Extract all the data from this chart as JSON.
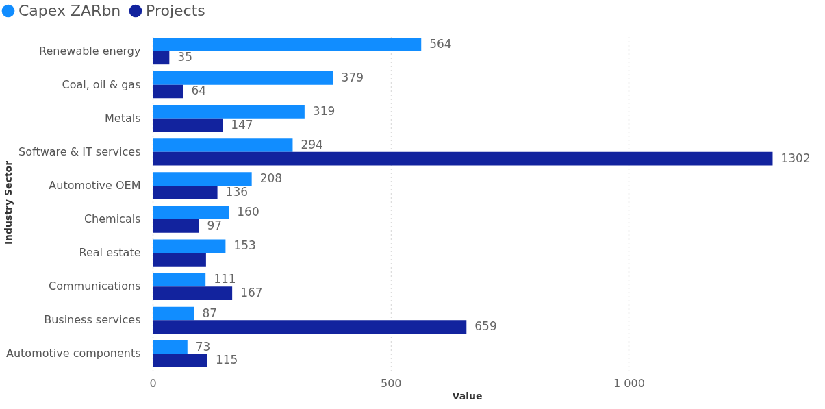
{
  "chart_data": {
    "type": "bar",
    "orientation": "horizontal",
    "xlabel": "Value",
    "ylabel": "Industry Sector",
    "categories": [
      "Renewable energy",
      "Coal, oil & gas",
      "Metals",
      "Software & IT services",
      "Automotive OEM",
      "Chemicals",
      "Real estate",
      "Communications",
      "Business services",
      "Automotive components"
    ],
    "series": [
      {
        "name": "Capex ZARbn",
        "color": "#118dff",
        "values": [
          564,
          379,
          319,
          294,
          208,
          160,
          153,
          111,
          87,
          73
        ],
        "value_labels": [
          "564",
          "379",
          "319",
          "294",
          "208",
          "160",
          "153",
          "111",
          "87",
          "73"
        ]
      },
      {
        "name": "Projects",
        "color": "#12239e",
        "values": [
          35,
          64,
          147,
          1302,
          136,
          97,
          112,
          167,
          659,
          115
        ],
        "value_labels": [
          "35",
          "64",
          "147",
          "1302",
          "136",
          "97",
          null,
          "167",
          "659",
          "115"
        ]
      }
    ],
    "xlim": [
      0,
      1320
    ],
    "xticks": [
      0,
      500,
      {
        "value": 1000,
        "label": "1 000"
      }
    ],
    "grid": "x",
    "legend": "top left"
  }
}
